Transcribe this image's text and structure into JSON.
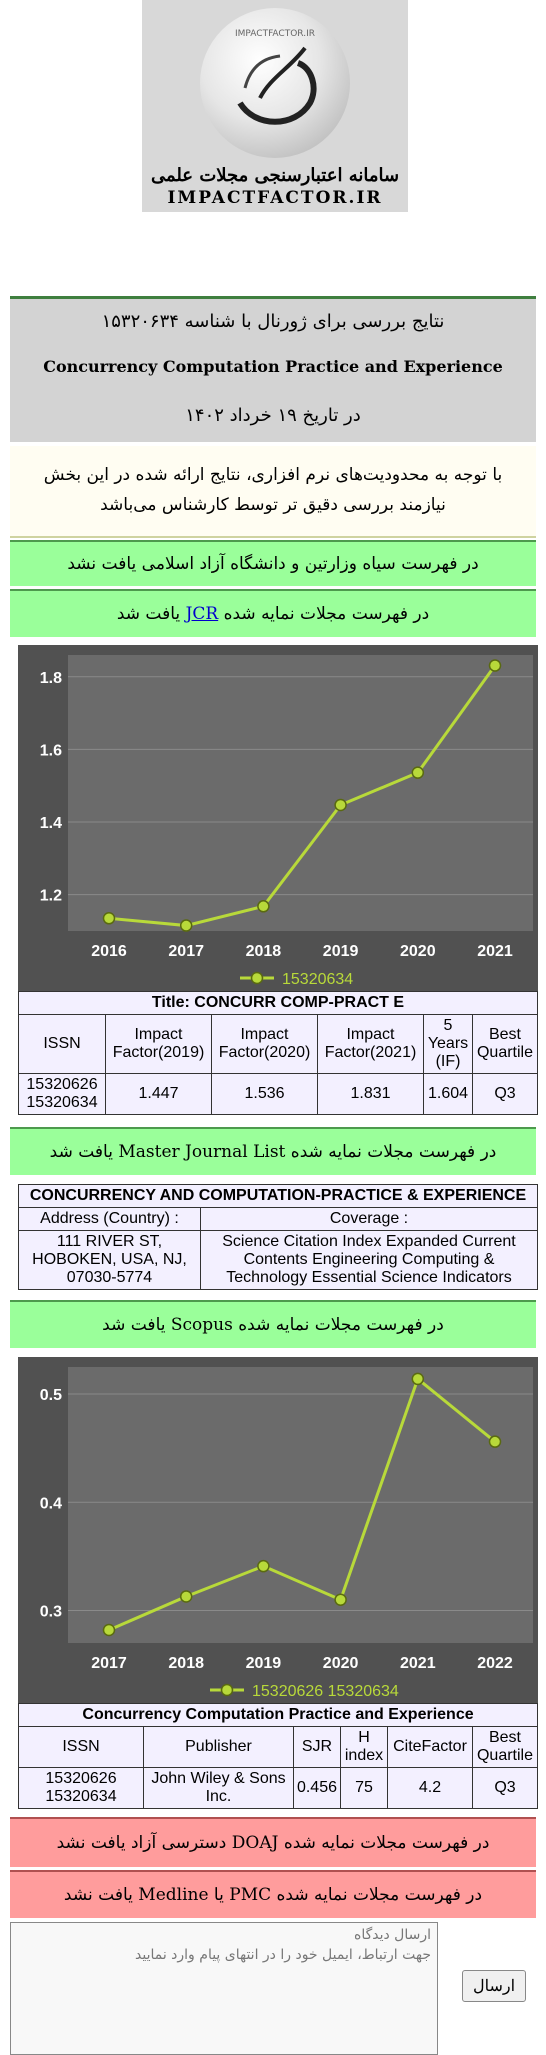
{
  "logo": {
    "watermark": "IMPACTFACTOR.IR",
    "title_fa": "سامانه اعتبارسنجی مجلات علمی",
    "title_en": "IMPACTFACTOR.IR"
  },
  "results": {
    "line1": "نتایج بررسی برای ژورنال با شناسه ۱۵۳۲۰۶۳۴",
    "journal": "Concurrency Computation Practice and Experience",
    "line3": "در تاریخ ۱۹ خرداد ۱۴۰۲"
  },
  "warning": {
    "line1": "با توجه به محدودیت‌های نرم افزاری، نتایج ارائه شده در این بخش",
    "line2": "نیازمند بررسی دقیق تر توسط کارشناس می‌باشد"
  },
  "blacklist_status": "در فهرست سیاه وزارتین و دانشگاه آزاد اسلامی یافت نشد",
  "jcr": {
    "status_prefix": "در فهرست مجلات نمایه شده",
    "status_link": "JCR",
    "status_suffix": "یافت شد",
    "title": "Title: CONCURR COMP-PRACT E",
    "headers": [
      "ISSN",
      "Impact Factor(2019)",
      "Impact Factor(2020)",
      "Impact Factor(2021)",
      "5 Years (IF)",
      "Best Quartile"
    ],
    "row": [
      "15320626 15320634",
      "1.447",
      "1.536",
      "1.831",
      "1.604",
      "Q3"
    ]
  },
  "mjl": {
    "status_prefix": "در فهرست مجلات نمایه شده",
    "status_name": "Master Journal List",
    "status_suffix": "یافت شد",
    "title": "CONCURRENCY AND COMPUTATION-PRACTICE & EXPERIENCE",
    "address_label": "Address (Country) :",
    "coverage_label": "Coverage :",
    "address": "111 RIVER ST, HOBOKEN, USA, NJ, 07030-5774",
    "coverage": "Science Citation Index Expanded Current Contents Engineering Computing & Technology Essential Science Indicators"
  },
  "scopus": {
    "status_prefix": "در فهرست مجلات نمایه شده",
    "status_name": "Scopus",
    "status_suffix": "یافت شد",
    "title": "Concurrency Computation Practice and Experience",
    "headers": [
      "ISSN",
      "Publisher",
      "SJR",
      "H index",
      "CiteFactor",
      "Best Quartile"
    ],
    "row": [
      "15320626 15320634",
      "John Wiley & Sons Inc.",
      "0.456",
      "75",
      "4.2",
      "Q3"
    ]
  },
  "doaj_status_prefix": "در فهرست مجلات نمایه شده",
  "doaj_status_name": "DOAJ",
  "doaj_status_suffix": "دسترسی آزاد یافت نشد",
  "pmc_status_prefix": "در فهرست مجلات نمایه شده",
  "pmc_status_name": "PMC یا Medline",
  "pmc_status_suffix": "یافت نشد",
  "comment": {
    "placeholder_line1": "ارسال دیدگاه",
    "placeholder_line2": "جهت ارتباط، ایمیل خود را در انتهای پیام وارد نمایید",
    "send_label": "ارسال"
  },
  "chart_data": [
    {
      "type": "line",
      "x": [
        "2016",
        "2017",
        "2018",
        "2019",
        "2020",
        "2021"
      ],
      "y_ticks": [
        "1.2",
        "1.4",
        "1.6",
        "1.8"
      ],
      "ylim": [
        1.1,
        1.86
      ],
      "series": [
        {
          "name": "15320634",
          "values": [
            1.135,
            1.115,
            1.168,
            1.447,
            1.536,
            1.831
          ]
        }
      ],
      "colors": {
        "background": "#515151",
        "plot": "#6b6b6b",
        "line": "#b8d93a"
      },
      "legend": "bottom"
    },
    {
      "type": "line",
      "x": [
        "2017",
        "2018",
        "2019",
        "2020",
        "2021",
        "2022"
      ],
      "y_ticks": [
        "0.3",
        "0.4",
        "0.5"
      ],
      "ylim": [
        0.27,
        0.525
      ],
      "series": [
        {
          "name": "15320626 15320634",
          "values": [
            0.282,
            0.313,
            0.341,
            0.31,
            0.514,
            0.456
          ]
        }
      ],
      "colors": {
        "background": "#515151",
        "plot": "#6b6b6b",
        "line": "#b8d93a"
      },
      "legend": "bottom"
    }
  ]
}
